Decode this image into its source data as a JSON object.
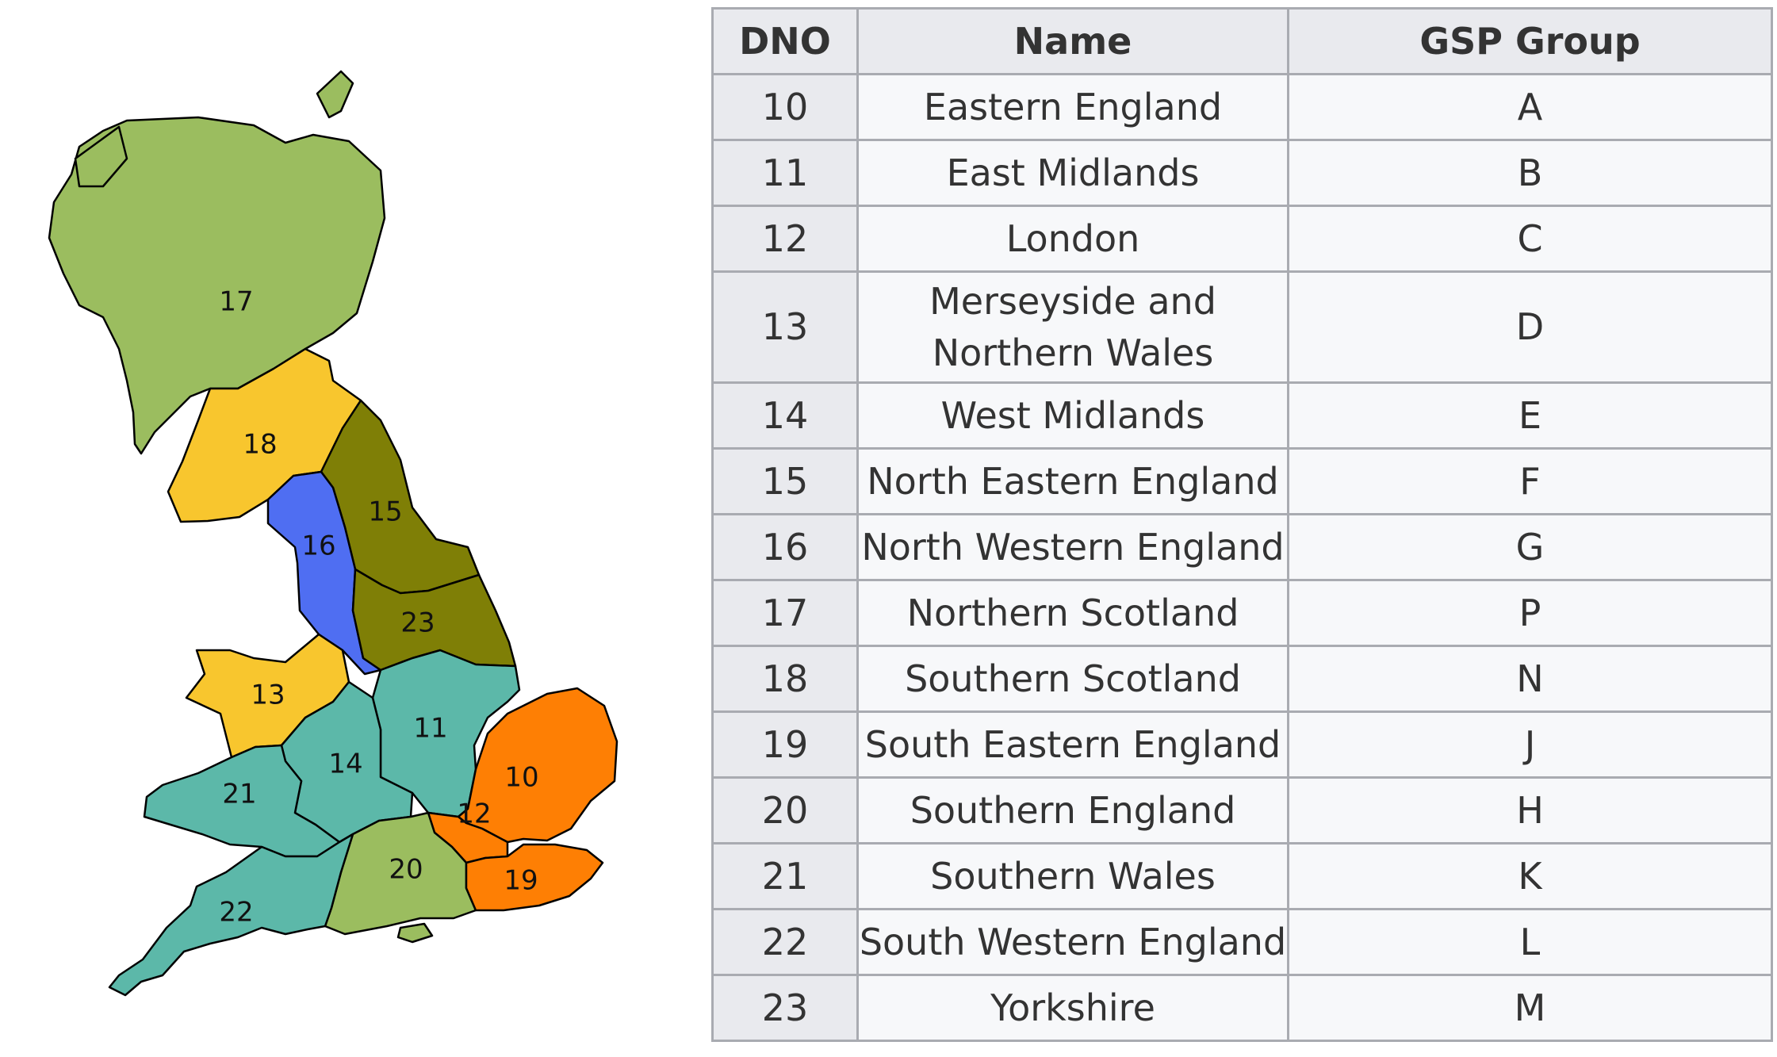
{
  "table": {
    "headers": {
      "dno": "DNO",
      "name": "Name",
      "gsp": "GSP Group"
    },
    "rows": [
      {
        "dno": "10",
        "name": "Eastern England",
        "gsp": "A"
      },
      {
        "dno": "11",
        "name": "East Midlands",
        "gsp": "B"
      },
      {
        "dno": "12",
        "name": "London",
        "gsp": "C"
      },
      {
        "dno": "13",
        "name": "Merseyside and Northern Wales",
        "gsp": "D"
      },
      {
        "dno": "14",
        "name": "West Midlands",
        "gsp": "E"
      },
      {
        "dno": "15",
        "name": "North Eastern England",
        "gsp": "F"
      },
      {
        "dno": "16",
        "name": "North Western England",
        "gsp": "G"
      },
      {
        "dno": "17",
        "name": "Northern Scotland",
        "gsp": "P"
      },
      {
        "dno": "18",
        "name": "Southern Scotland",
        "gsp": "N"
      },
      {
        "dno": "19",
        "name": "South Eastern England",
        "gsp": "J"
      },
      {
        "dno": "20",
        "name": "Southern England",
        "gsp": "H"
      },
      {
        "dno": "21",
        "name": "Southern Wales",
        "gsp": "K"
      },
      {
        "dno": "22",
        "name": "South Western England",
        "gsp": "L"
      },
      {
        "dno": "23",
        "name": "Yorkshire",
        "gsp": "M"
      }
    ]
  },
  "map": {
    "colors": {
      "light_green": "#9bbd5f",
      "yellow": "#f8c62e",
      "olive": "#7f7f06",
      "blue": "#4f6ef2",
      "teal": "#5cb8a9",
      "orange": "#fe7f04"
    },
    "regions": [
      {
        "label": "17",
        "color": "#9bbd5f"
      },
      {
        "label": "18",
        "color": "#f8c62e"
      },
      {
        "label": "15",
        "color": "#7f7f06"
      },
      {
        "label": "16",
        "color": "#4f6ef2"
      },
      {
        "label": "23",
        "color": "#7f7f06"
      },
      {
        "label": "13",
        "color": "#f8c62e"
      },
      {
        "label": "11",
        "color": "#5cb8a9"
      },
      {
        "label": "14",
        "color": "#5cb8a9"
      },
      {
        "label": "21",
        "color": "#5cb8a9"
      },
      {
        "label": "10",
        "color": "#fe7f04"
      },
      {
        "label": "12",
        "color": "#fe7f04"
      },
      {
        "label": "20",
        "color": "#9bbd5f"
      },
      {
        "label": "19",
        "color": "#fe7f04"
      },
      {
        "label": "22",
        "color": "#5cb8a9"
      }
    ]
  }
}
